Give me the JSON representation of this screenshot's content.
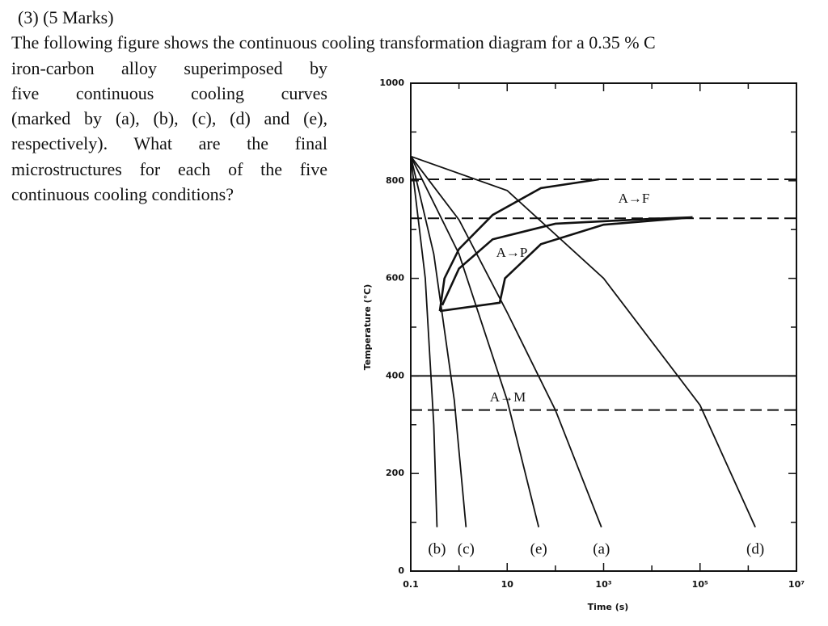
{
  "question": {
    "lines": [
      "(3) (5 Marks)",
      "The following figure shows the continuous cooling transformation diagram for a 0.35 % C",
      "iron-carbon alloy superimposed by",
      "five continuous cooling curves",
      "(marked by (a), (b), (c), (d) and (e),",
      "respectively).  What are the final",
      "microstructures for each of the five",
      "continuous cooling conditions?"
    ]
  },
  "figure": {
    "type": "line",
    "x_label": "Time (s)",
    "y_label": "Temperature (°C)",
    "xscale": "log",
    "xlim": [
      0.1,
      10000000
    ],
    "ylim": [
      0,
      1000
    ],
    "xticks": [
      0.1,
      10,
      {
        "value": 1000,
        "label": "10³"
      },
      {
        "value": 100000,
        "label": "10⁵"
      },
      {
        "value": 10000000,
        "label": "10⁷"
      }
    ],
    "xticks_minor": [
      1,
      100,
      10000,
      1000000
    ],
    "yticks": [
      0,
      200,
      400,
      600,
      800,
      1000
    ],
    "yticks_minor": [
      100,
      300,
      500,
      700,
      900
    ],
    "color": "#111111",
    "series": [
      {
        "name": "(b)",
        "x": [
          0.1,
          0.2,
          0.3,
          0.35
        ],
        "values": [
          850,
          600,
          300,
          90
        ]
      },
      {
        "name": "(c)",
        "x": [
          0.1,
          0.3,
          0.8,
          1.4
        ],
        "values": [
          850,
          650,
          350,
          90
        ]
      },
      {
        "name": "(e)",
        "x": [
          0.1,
          1,
          10,
          45
        ],
        "values": [
          850,
          650,
          350,
          90
        ]
      },
      {
        "name": "(a)",
        "x": [
          0.1,
          1,
          10,
          100,
          900
        ],
        "values": [
          850,
          720,
          530,
          330,
          90
        ]
      },
      {
        "name": "(d)",
        "x": [
          0.1,
          10,
          1000,
          100000,
          1400000
        ],
        "values": [
          850,
          780,
          600,
          340,
          90
        ]
      }
    ],
    "boundaries": [
      {
        "x": [
          0.4,
          0.5,
          1,
          5,
          50,
          800
        ],
        "values": [
          533,
          600,
          660,
          730,
          785,
          803
        ]
      },
      {
        "x": [
          0.45,
          1,
          5,
          100,
          10000,
          70000
        ],
        "values": [
          545,
          620,
          680,
          712,
          722,
          725
        ]
      },
      {
        "x": [
          0.4,
          7,
          9,
          50,
          1000,
          70000
        ],
        "values": [
          533,
          550,
          600,
          670,
          710,
          725
        ]
      }
    ],
    "hlines": [
      {
        "value": 803,
        "style": "dashed"
      },
      {
        "value": 723,
        "style": "dashed"
      },
      {
        "value": 400,
        "style": "solid"
      },
      {
        "value": 330,
        "style": "dashed"
      }
    ],
    "annotations": [
      "A→F",
      "A→P",
      "A→M"
    ]
  }
}
